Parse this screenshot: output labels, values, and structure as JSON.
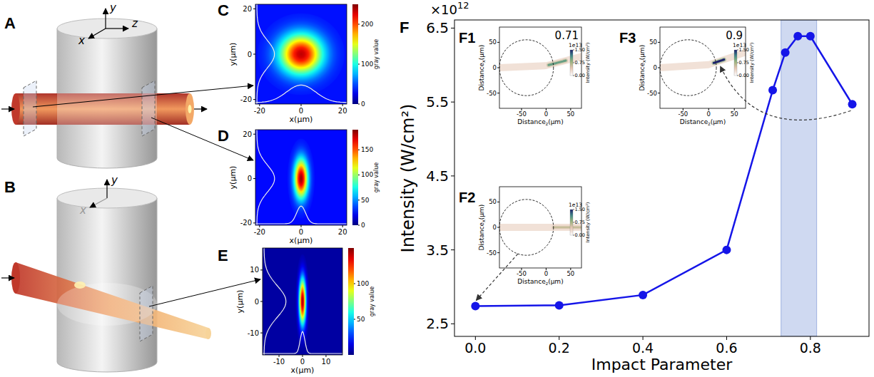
{
  "diagrams": [
    {
      "letter": "A",
      "axes": [
        "y",
        "x",
        "z"
      ]
    },
    {
      "letter": "B",
      "axes": [
        "y",
        "x"
      ]
    }
  ],
  "chart_data": [
    {
      "type": "heatmap",
      "letter": "C",
      "xlabel": "x(μm)",
      "ylabel": "y(μm)",
      "xlim": [
        -22,
        22
      ],
      "ylim": [
        -22,
        22
      ],
      "xticks": [
        -20,
        0,
        20
      ],
      "yticks": [
        -20,
        0,
        20
      ],
      "spot": {
        "x": 0,
        "y": 0,
        "sigma_x": 7,
        "sigma_y": 6,
        "peak": 235,
        "base": 35
      },
      "colorbar": {
        "label": "gray value",
        "range": [
          0,
          250
        ],
        "ticks": [
          0,
          100,
          200
        ]
      }
    },
    {
      "type": "heatmap",
      "letter": "D",
      "xlabel": "x(μm)",
      "ylabel": "y(μm)",
      "xlim": [
        -22,
        22
      ],
      "ylim": [
        -21,
        22
      ],
      "xticks": [
        -20,
        0,
        20
      ],
      "yticks": [
        -20,
        0,
        20
      ],
      "spot": {
        "x": 0,
        "y": 0,
        "sigma_x": 2.2,
        "sigma_y": 6,
        "peak": 185,
        "base": 25
      },
      "colorbar": {
        "label": "gray value",
        "range": [
          0,
          190
        ],
        "ticks": [
          0,
          50,
          100,
          150
        ]
      }
    },
    {
      "type": "heatmap",
      "letter": "E",
      "xlabel": "x(μm)",
      "ylabel": "y(μm)",
      "xlim": [
        -17,
        17
      ],
      "ylim": [
        -17,
        17
      ],
      "xticks": [
        -10,
        0,
        10
      ],
      "yticks": [
        -10,
        0,
        10
      ],
      "spot": {
        "x": 0,
        "y": 0,
        "sigma_x": 1,
        "sigma_y": 5,
        "peak": 145,
        "base": 5
      },
      "colorbar": {
        "label": "gray value",
        "range": [
          0,
          150
        ],
        "ticks": [
          50,
          100
        ]
      }
    },
    {
      "type": "line",
      "letter": "F",
      "xlabel": "Impact Parameter",
      "ylabel": "Intensity (W/cm²)",
      "y_multiplier": {
        "base": "×10",
        "exponent": "12"
      },
      "x": [
        0,
        0.2,
        0.4,
        0.6,
        0.71,
        0.74,
        0.77,
        0.8,
        0.9
      ],
      "values": [
        2.74,
        2.75,
        2.89,
        3.5,
        5.66,
        6.17,
        6.39,
        6.39,
        5.47
      ],
      "color": "#1515e8",
      "marker": "circle",
      "xlim": [
        -0.05,
        0.94
      ],
      "ylim": [
        2.33,
        6.61
      ],
      "xticks": [
        {
          "value": 0,
          "label": "0.0"
        },
        0.2,
        0.4,
        0.6,
        0.8
      ],
      "yticks": [
        2.5,
        3.5,
        4.5,
        5.5,
        6.5
      ],
      "highlight": [
        0.73,
        0.815
      ]
    },
    {
      "type": "heatmap",
      "letter": "F1",
      "annotation": "0.71",
      "xlabel": {
        "text": "Distance",
        "sub": "z",
        "unit": "(μm)"
      },
      "ylabel": {
        "text": "Distance",
        "sub": "x",
        "unit": "(μm)"
      },
      "xlim": [
        -95,
        72
      ],
      "ylim": [
        -80,
        80
      ],
      "xticks": [
        -50,
        0,
        50
      ],
      "yticks": [
        -50,
        0,
        50
      ],
      "circle": {
        "center": [
          -40,
          0
        ],
        "radius": 55
      },
      "beam": {
        "path": [
          [
            -95,
            0
          ],
          [
            0,
            4
          ],
          [
            72,
            22
          ]
        ],
        "width": 14,
        "level": 0.25,
        "focus": [
          5,
          40
        ],
        "peak": 1.0
      },
      "colorbar": {
        "label": "Intensity (W/cm²)",
        "multiplier": "1e13",
        "range": [
          0,
          1.5
        ],
        "ticks": [
          {
            "value": 0,
            "label": "0.00"
          },
          {
            "value": 0.75,
            "label": "0.75"
          },
          {
            "value": 1.5,
            "label": "1.50"
          }
        ]
      }
    },
    {
      "type": "heatmap",
      "letter": "F2",
      "xlabel": {
        "text": "Distance",
        "sub": "z",
        "unit": "(μm)"
      },
      "ylabel": {
        "text": "Distance",
        "sub": "x",
        "unit": "(μm)"
      },
      "xlim": [
        -95,
        72
      ],
      "ylim": [
        -80,
        80
      ],
      "xticks": [
        -50,
        0,
        50
      ],
      "yticks": [
        -50,
        0,
        50
      ],
      "circle": {
        "center": [
          -40,
          0
        ],
        "radius": 55
      },
      "beam": {
        "path": [
          [
            -95,
            0
          ],
          [
            72,
            0
          ]
        ],
        "width": 14,
        "level": 0.25,
        "focus": [
          15,
          72
        ],
        "peak": 0.6
      },
      "colorbar": {
        "label": "Intensity (W/cm²)",
        "multiplier": "1e13",
        "range": [
          0,
          1.5
        ],
        "ticks": [
          {
            "value": 0,
            "label": "0.00"
          },
          {
            "value": 0.75,
            "label": "0.75"
          },
          {
            "value": 1.5,
            "label": "1.50"
          }
        ]
      }
    },
    {
      "type": "heatmap",
      "letter": "F3",
      "annotation": "0.9",
      "xlabel": {
        "text": "Distance",
        "sub": "z",
        "unit": "(μm)"
      },
      "ylabel": {
        "text": "Distance",
        "sub": "x",
        "unit": "(μm)"
      },
      "xlim": [
        -95,
        72
      ],
      "ylim": [
        -80,
        80
      ],
      "xticks": [
        -50,
        0,
        50
      ],
      "yticks": [
        -50,
        0,
        50
      ],
      "circle": {
        "center": [
          -40,
          0
        ],
        "radius": 55
      },
      "beam": {
        "path": [
          [
            -95,
            0
          ],
          [
            0,
            6
          ],
          [
            72,
            30
          ]
        ],
        "width": 14,
        "level": 0.25,
        "focus": [
          10,
          30
        ],
        "peak": 1.5
      },
      "colorbar": {
        "label": "Intensity (W/cm²)",
        "multiplier": "1e13",
        "range": [
          0,
          1.5
        ],
        "ticks": [
          {
            "value": 0,
            "label": "0.00"
          },
          {
            "value": 0.75,
            "label": "0.75"
          },
          {
            "value": 1.5,
            "label": "1.50"
          }
        ]
      }
    }
  ]
}
